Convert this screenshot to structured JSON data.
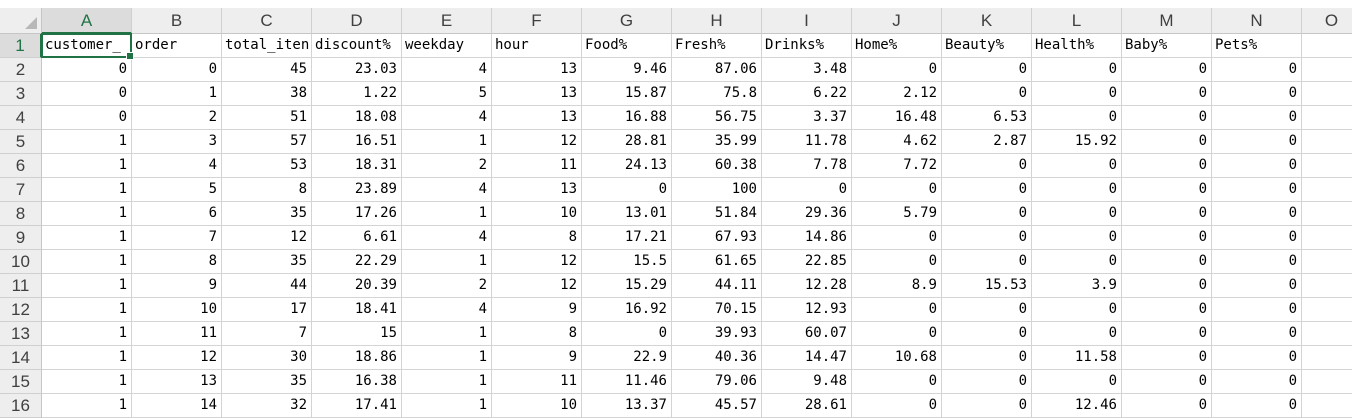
{
  "columns": [
    "A",
    "B",
    "C",
    "D",
    "E",
    "F",
    "G",
    "H",
    "I",
    "J",
    "K",
    "L",
    "M",
    "N",
    "O"
  ],
  "active_cell": "A1",
  "headers": [
    "customer_",
    "order",
    "total_iten",
    "discount%",
    "weekday",
    "hour",
    "Food%",
    "Fresh%",
    "Drinks%",
    "Home%",
    "Beauty%",
    "Health%",
    "Baby%",
    "Pets%",
    ""
  ],
  "rows": [
    {
      "n": "2",
      "cells": [
        "0",
        "0",
        "45",
        "23.03",
        "4",
        "13",
        "9.46",
        "87.06",
        "3.48",
        "0",
        "0",
        "0",
        "0",
        "0"
      ]
    },
    {
      "n": "3",
      "cells": [
        "0",
        "1",
        "38",
        "1.22",
        "5",
        "13",
        "15.87",
        "75.8",
        "6.22",
        "2.12",
        "0",
        "0",
        "0",
        "0"
      ]
    },
    {
      "n": "4",
      "cells": [
        "0",
        "2",
        "51",
        "18.08",
        "4",
        "13",
        "16.88",
        "56.75",
        "3.37",
        "16.48",
        "6.53",
        "0",
        "0",
        "0"
      ]
    },
    {
      "n": "5",
      "cells": [
        "1",
        "3",
        "57",
        "16.51",
        "1",
        "12",
        "28.81",
        "35.99",
        "11.78",
        "4.62",
        "2.87",
        "15.92",
        "0",
        "0"
      ]
    },
    {
      "n": "6",
      "cells": [
        "1",
        "4",
        "53",
        "18.31",
        "2",
        "11",
        "24.13",
        "60.38",
        "7.78",
        "7.72",
        "0",
        "0",
        "0",
        "0"
      ]
    },
    {
      "n": "7",
      "cells": [
        "1",
        "5",
        "8",
        "23.89",
        "4",
        "13",
        "0",
        "100",
        "0",
        "0",
        "0",
        "0",
        "0",
        "0"
      ]
    },
    {
      "n": "8",
      "cells": [
        "1",
        "6",
        "35",
        "17.26",
        "1",
        "10",
        "13.01",
        "51.84",
        "29.36",
        "5.79",
        "0",
        "0",
        "0",
        "0"
      ]
    },
    {
      "n": "9",
      "cells": [
        "1",
        "7",
        "12",
        "6.61",
        "4",
        "8",
        "17.21",
        "67.93",
        "14.86",
        "0",
        "0",
        "0",
        "0",
        "0"
      ]
    },
    {
      "n": "10",
      "cells": [
        "1",
        "8",
        "35",
        "22.29",
        "1",
        "12",
        "15.5",
        "61.65",
        "22.85",
        "0",
        "0",
        "0",
        "0",
        "0"
      ]
    },
    {
      "n": "11",
      "cells": [
        "1",
        "9",
        "44",
        "20.39",
        "2",
        "12",
        "15.29",
        "44.11",
        "12.28",
        "8.9",
        "15.53",
        "3.9",
        "0",
        "0"
      ]
    },
    {
      "n": "12",
      "cells": [
        "1",
        "10",
        "17",
        "18.41",
        "4",
        "9",
        "16.92",
        "70.15",
        "12.93",
        "0",
        "0",
        "0",
        "0",
        "0"
      ]
    },
    {
      "n": "13",
      "cells": [
        "1",
        "11",
        "7",
        "15",
        "1",
        "8",
        "0",
        "39.93",
        "60.07",
        "0",
        "0",
        "0",
        "0",
        "0"
      ]
    },
    {
      "n": "14",
      "cells": [
        "1",
        "12",
        "30",
        "18.86",
        "1",
        "9",
        "22.9",
        "40.36",
        "14.47",
        "10.68",
        "0",
        "11.58",
        "0",
        "0"
      ]
    },
    {
      "n": "15",
      "cells": [
        "1",
        "13",
        "35",
        "16.38",
        "1",
        "11",
        "11.46",
        "79.06",
        "9.48",
        "0",
        "0",
        "0",
        "0",
        "0"
      ]
    },
    {
      "n": "16",
      "cells": [
        "1",
        "14",
        "32",
        "17.41",
        "1",
        "10",
        "13.37",
        "45.57",
        "28.61",
        "0",
        "0",
        "12.46",
        "0",
        "0"
      ]
    }
  ],
  "header_row_number": "1",
  "colors": {
    "accent": "#217346",
    "header_bg": "#eeeeee",
    "grid": "#d4d4d4"
  }
}
